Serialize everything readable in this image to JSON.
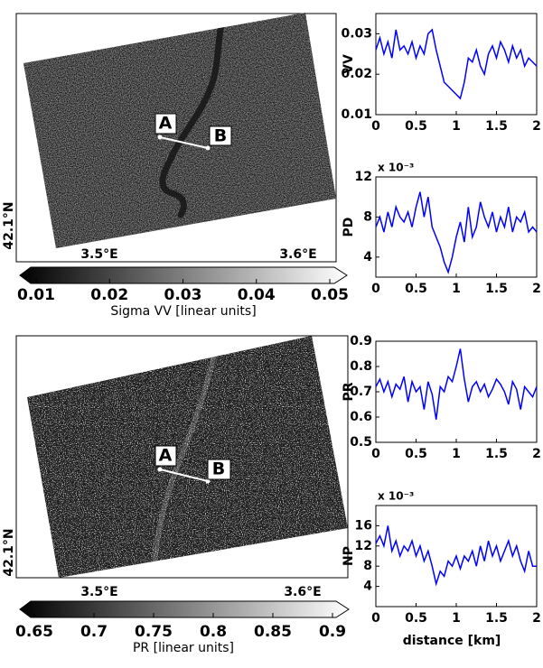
{
  "chart_data": [
    {
      "type": "image",
      "lon_labels": [
        "3.5°E",
        "3.6°E"
      ],
      "lat_label": "42.1°N",
      "points": [
        "A",
        "B"
      ],
      "clim": [
        0.01,
        0.05
      ],
      "cticks": [
        0.01,
        0.02,
        0.03,
        0.04,
        0.05
      ],
      "clabel": "Sigma VV [linear units]"
    },
    {
      "type": "line",
      "ylabel": "VV",
      "xlim": [
        0,
        2
      ],
      "xticks": [
        0,
        0.5,
        1,
        1.5,
        2
      ],
      "ylim": [
        0.01,
        0.035
      ],
      "yticks": [
        0.01,
        0.02,
        0.03
      ],
      "x": [
        0,
        0.05,
        0.1,
        0.15,
        0.2,
        0.25,
        0.3,
        0.35,
        0.4,
        0.45,
        0.5,
        0.55,
        0.6,
        0.65,
        0.7,
        0.75,
        0.8,
        0.85,
        0.9,
        0.95,
        1,
        1.05,
        1.1,
        1.15,
        1.2,
        1.25,
        1.3,
        1.35,
        1.4,
        1.45,
        1.5,
        1.55,
        1.6,
        1.65,
        1.7,
        1.75,
        1.8,
        1.85,
        1.9,
        1.95,
        2
      ],
      "color": "#0000ff",
      "values": [
        0.026,
        0.029,
        0.025,
        0.028,
        0.024,
        0.031,
        0.026,
        0.027,
        0.025,
        0.028,
        0.024,
        0.027,
        0.025,
        0.03,
        0.031,
        0.026,
        0.022,
        0.018,
        0.017,
        0.016,
        0.015,
        0.014,
        0.018,
        0.024,
        0.023,
        0.026,
        0.022,
        0.02,
        0.025,
        0.027,
        0.024,
        0.028,
        0.026,
        0.023,
        0.027,
        0.024,
        0.026,
        0.022,
        0.024,
        0.023,
        0.022
      ]
    },
    {
      "type": "line",
      "ylabel": "PD",
      "y_multiplier": "x 10⁻³",
      "xlim": [
        0,
        2
      ],
      "xticks": [
        0,
        0.5,
        1,
        1.5,
        2
      ],
      "ylim": [
        2,
        12
      ],
      "yticks": [
        4,
        8,
        12
      ],
      "x": [
        0,
        0.05,
        0.1,
        0.15,
        0.2,
        0.25,
        0.3,
        0.35,
        0.4,
        0.45,
        0.5,
        0.55,
        0.6,
        0.65,
        0.7,
        0.75,
        0.8,
        0.85,
        0.9,
        0.95,
        1,
        1.05,
        1.1,
        1.15,
        1.2,
        1.25,
        1.3,
        1.35,
        1.4,
        1.45,
        1.5,
        1.55,
        1.6,
        1.65,
        1.7,
        1.75,
        1.8,
        1.85,
        1.9,
        1.95,
        2
      ],
      "color": "#0000ff",
      "values": [
        7,
        8,
        6.5,
        8.5,
        7,
        9,
        8,
        7.5,
        8.5,
        7,
        9,
        10.5,
        8,
        10,
        7,
        6,
        5,
        3.5,
        2.5,
        4,
        6,
        7.5,
        5.5,
        9,
        6,
        7,
        9.5,
        8,
        7,
        8.5,
        6.5,
        8,
        7,
        9,
        6.5,
        8,
        7.5,
        8.5,
        6.5,
        7,
        6.5
      ]
    },
    {
      "type": "image",
      "lon_labels": [
        "3.5°E",
        "3.6°E"
      ],
      "lat_label": "42.1°N",
      "points": [
        "A",
        "B"
      ],
      "clim": [
        0.65,
        0.9
      ],
      "cticks": [
        0.65,
        0.7,
        0.75,
        0.8,
        0.85,
        0.9
      ],
      "clabel": "PR [linear units]"
    },
    {
      "type": "line",
      "ylabel": "PR",
      "xlim": [
        0,
        2
      ],
      "xticks": [
        0,
        0.5,
        1,
        1.5,
        2
      ],
      "ylim": [
        0.5,
        0.9
      ],
      "yticks": [
        0.5,
        0.6,
        0.7,
        0.8,
        0.9
      ],
      "x": [
        0,
        0.05,
        0.1,
        0.15,
        0.2,
        0.25,
        0.3,
        0.35,
        0.4,
        0.45,
        0.5,
        0.55,
        0.6,
        0.65,
        0.7,
        0.75,
        0.8,
        0.85,
        0.9,
        0.95,
        1,
        1.05,
        1.1,
        1.15,
        1.2,
        1.25,
        1.3,
        1.35,
        1.4,
        1.45,
        1.5,
        1.55,
        1.6,
        1.65,
        1.7,
        1.75,
        1.8,
        1.85,
        1.9,
        1.95,
        2
      ],
      "color": "#0000ff",
      "values": [
        0.72,
        0.75,
        0.7,
        0.74,
        0.68,
        0.73,
        0.71,
        0.76,
        0.66,
        0.74,
        0.7,
        0.72,
        0.63,
        0.74,
        0.69,
        0.59,
        0.72,
        0.7,
        0.76,
        0.74,
        0.8,
        0.87,
        0.75,
        0.66,
        0.72,
        0.74,
        0.7,
        0.73,
        0.68,
        0.71,
        0.75,
        0.73,
        0.7,
        0.65,
        0.74,
        0.71,
        0.63,
        0.72,
        0.7,
        0.68,
        0.72
      ]
    },
    {
      "type": "line",
      "ylabel": "NP",
      "y_multiplier": "x 10⁻³",
      "xlabel": "distance [km]",
      "xlim": [
        0,
        2
      ],
      "xticks": [
        0,
        0.5,
        1,
        1.5,
        2
      ],
      "ylim": [
        0,
        20
      ],
      "yticks": [
        4,
        8,
        12,
        16
      ],
      "x": [
        0,
        0.05,
        0.1,
        0.15,
        0.2,
        0.25,
        0.3,
        0.35,
        0.4,
        0.45,
        0.5,
        0.55,
        0.6,
        0.65,
        0.7,
        0.75,
        0.8,
        0.85,
        0.9,
        0.95,
        1,
        1.05,
        1.1,
        1.15,
        1.2,
        1.25,
        1.3,
        1.35,
        1.4,
        1.45,
        1.5,
        1.55,
        1.6,
        1.65,
        1.7,
        1.75,
        1.8,
        1.85,
        1.9,
        1.95,
        2
      ],
      "color": "#0000ff",
      "values": [
        12.5,
        14,
        12,
        16,
        11,
        13,
        10,
        12,
        11,
        13,
        10,
        12,
        9,
        11,
        8,
        4.5,
        7,
        6,
        9,
        8,
        10,
        7.5,
        10,
        9,
        11,
        8,
        12,
        9,
        13,
        10,
        12,
        9,
        11,
        13,
        10,
        12,
        9,
        7,
        11,
        8,
        8
      ]
    }
  ]
}
